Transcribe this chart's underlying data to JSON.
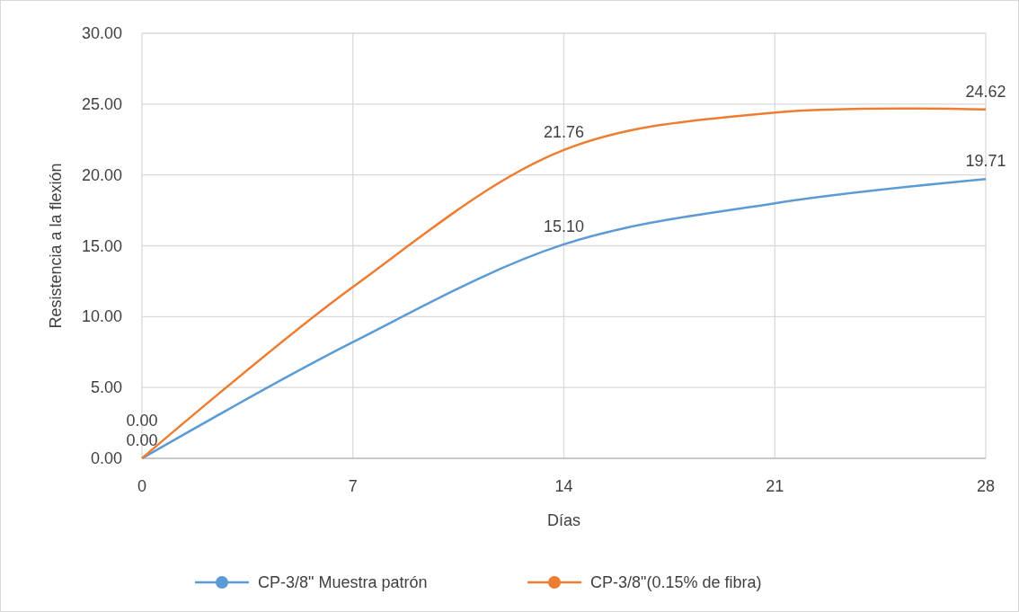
{
  "chart_data": {
    "type": "line",
    "xlabel": "Días",
    "ylabel": "Resistencia a la flexión",
    "x": [
      0,
      7,
      14,
      21,
      28
    ],
    "xlim": [
      0,
      28
    ],
    "xticks": [
      0,
      7,
      14,
      21,
      28
    ],
    "ylim": [
      0,
      30
    ],
    "yticks": [
      {
        "value": 0,
        "label": "0.00"
      },
      {
        "value": 5,
        "label": "5.00"
      },
      {
        "value": 10,
        "label": "10.00"
      },
      {
        "value": 15,
        "label": "15.00"
      },
      {
        "value": 20,
        "label": "20.00"
      },
      {
        "value": 25,
        "label": "25.00"
      },
      {
        "value": 30,
        "label": "30.00"
      }
    ],
    "grid": true,
    "legend": "bottom",
    "marker": "none",
    "line_style": "solid",
    "series": [
      {
        "name": "CP-3/8\" Muestra patrón",
        "color": "#5b9bd5",
        "values": [
          0,
          8.2,
          15.1,
          18.0,
          19.71
        ],
        "value_labels": [
          "0.00",
          null,
          "15.10",
          null,
          "19.71"
        ]
      },
      {
        "name": "CP-3/8\"(0.15% de fibra)",
        "color": "#ed7d31",
        "values": [
          0,
          12.1,
          21.76,
          24.4,
          24.62
        ],
        "value_labels": [
          "0.00",
          null,
          "21.76",
          null,
          "24.62"
        ]
      }
    ]
  }
}
